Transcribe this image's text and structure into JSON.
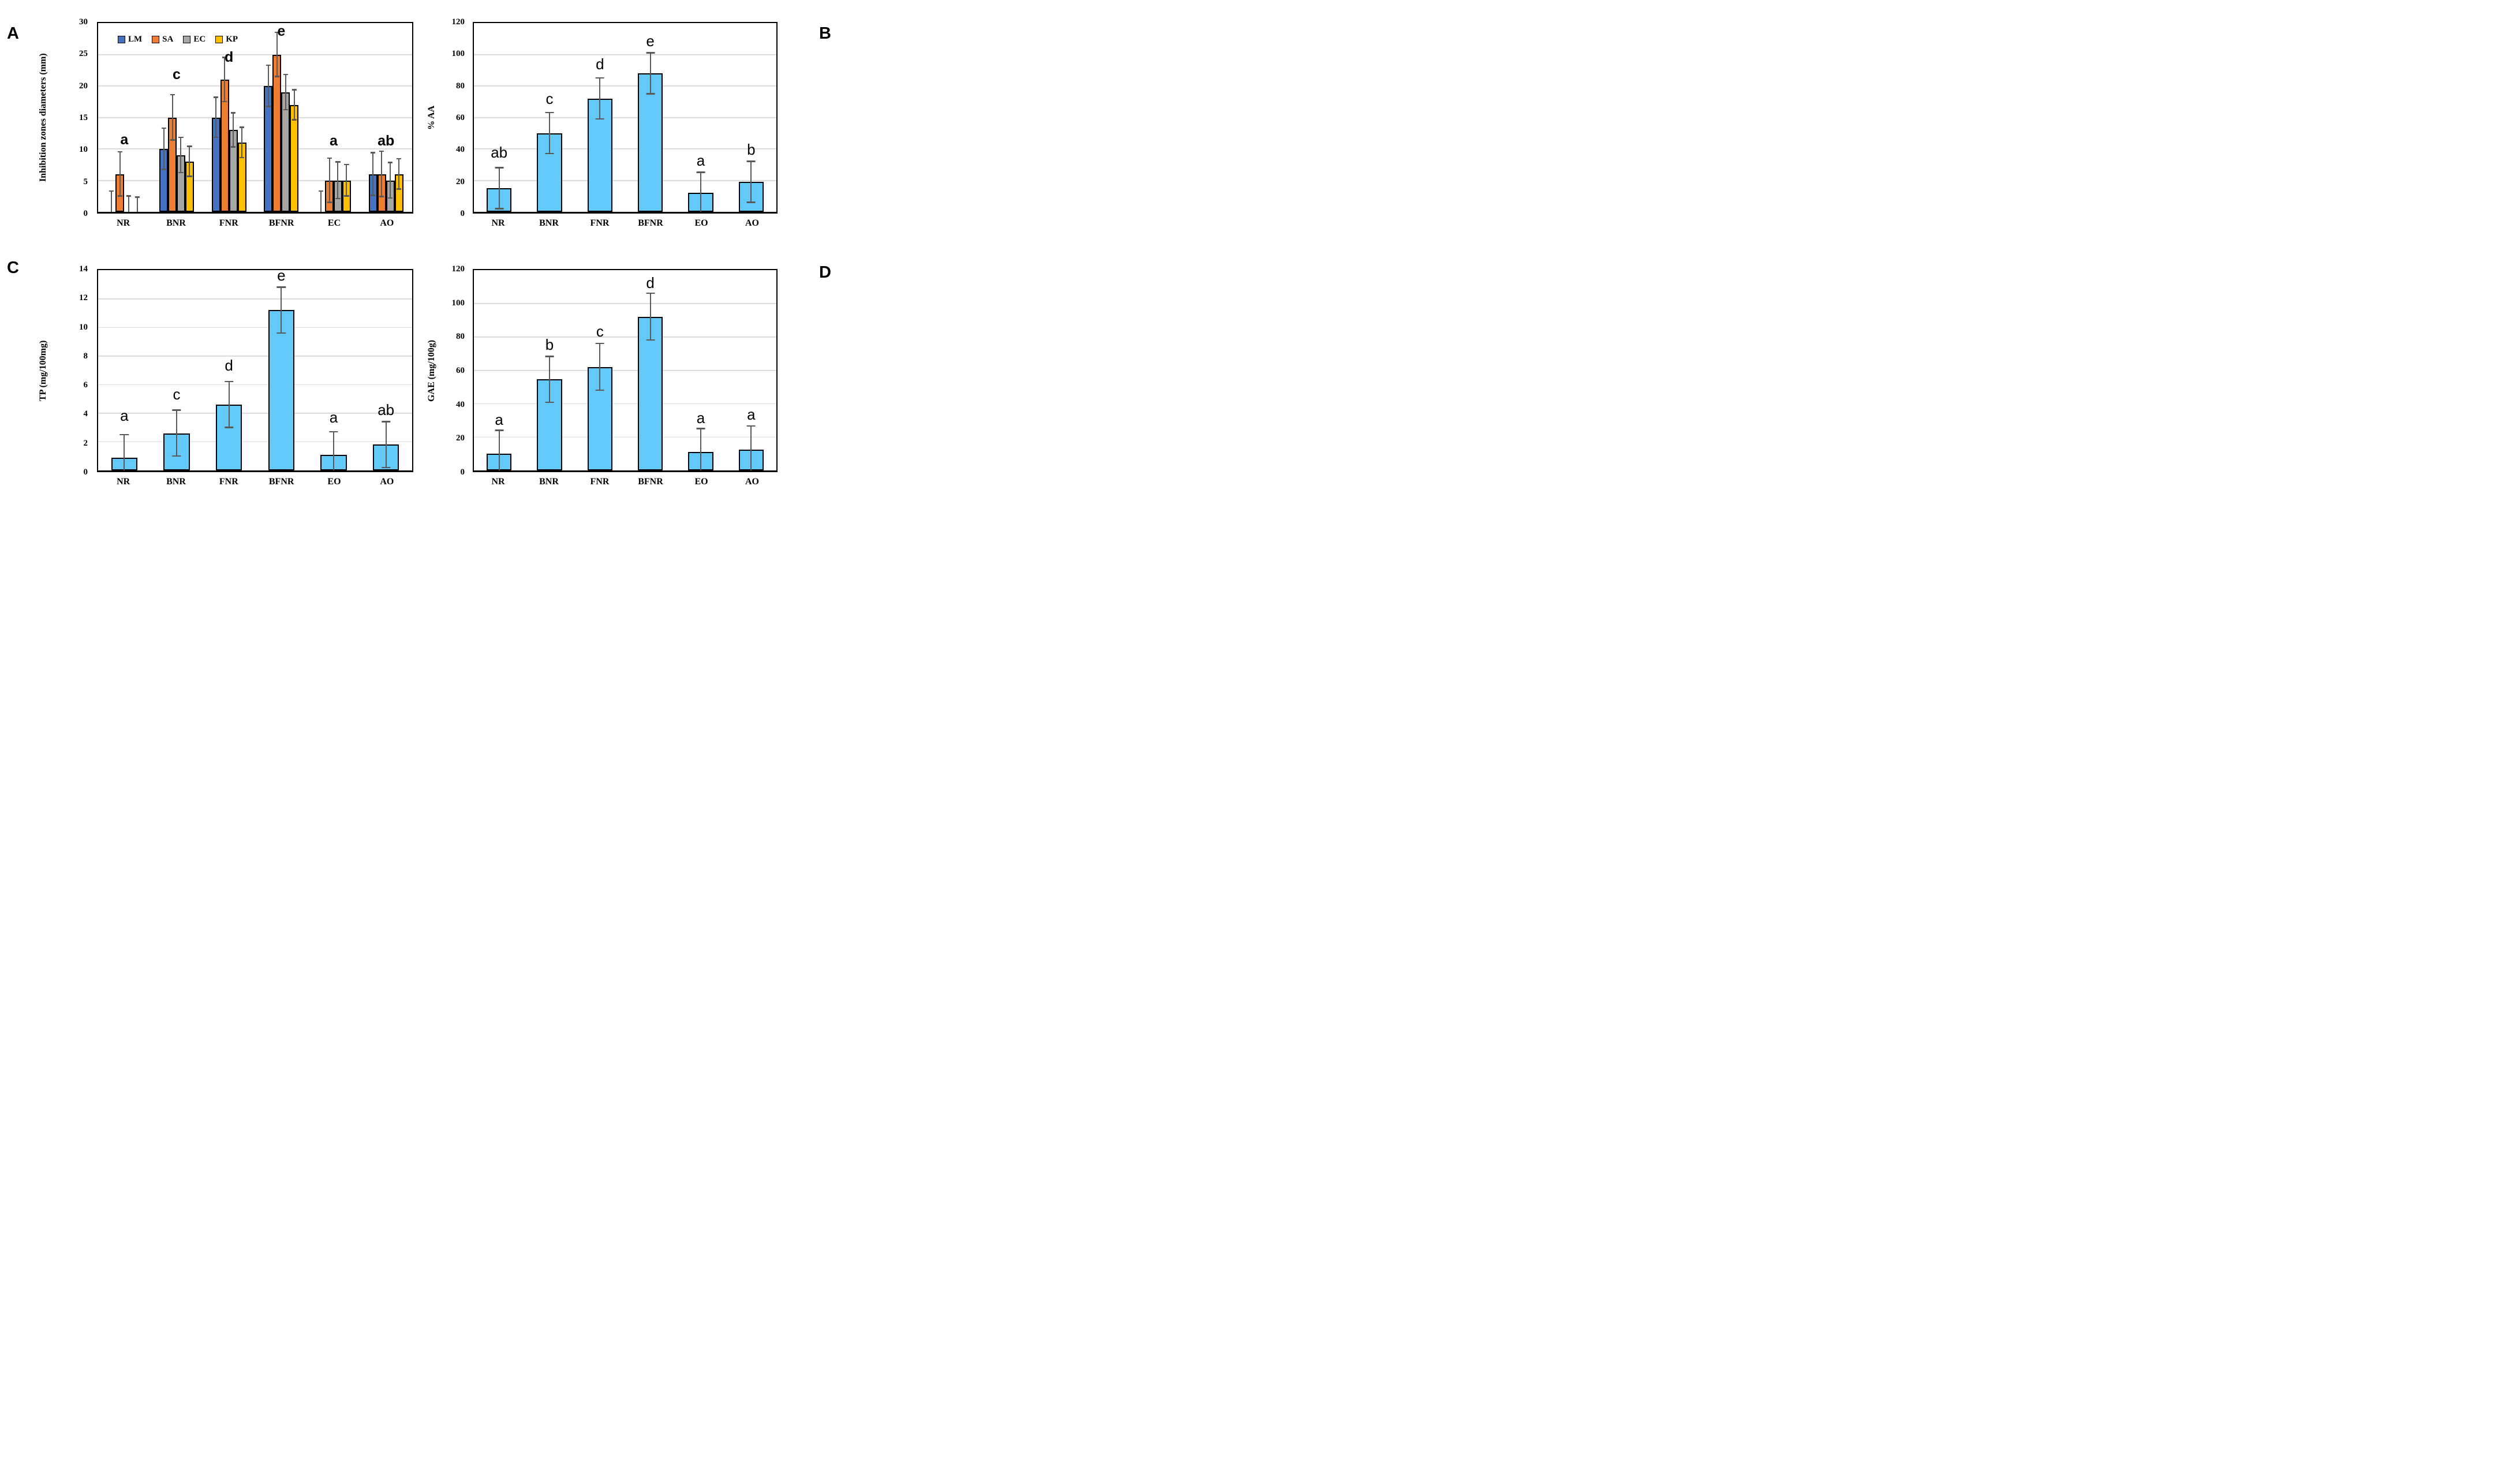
{
  "colors": {
    "blue": "#4472C4",
    "orange": "#ED7D31",
    "gray": "#A5A5A5",
    "yellow": "#FFC000",
    "bar_fill": "#63C9F8",
    "gridline": "#D9D9D9",
    "error_bar": "#595959",
    "outline": "#000000"
  },
  "chart_data": [
    {
      "corner_label": "A",
      "type": "grouped-bar",
      "ylabel": "Inhibition zones diameters (mm)",
      "ylim": [
        0,
        30
      ],
      "yticks": [
        0,
        5,
        10,
        15,
        20,
        25,
        30
      ],
      "grid": true,
      "legend_position": "top-left-inside",
      "categories": [
        "NR",
        "BNR",
        "FNR",
        "BFNR",
        "EC",
        "AO"
      ],
      "legend": [
        "LM",
        "SA",
        "EC",
        "KP"
      ],
      "series": [
        {
          "name": "LM",
          "color": "blue",
          "values": [
            0,
            10,
            15,
            20,
            0,
            6
          ],
          "errors": [
            3.3,
            3.3,
            3.2,
            3.3,
            3.3,
            3.4
          ]
        },
        {
          "name": "SA",
          "color": "orange",
          "values": [
            6,
            15,
            21,
            25,
            5,
            6
          ],
          "errors": [
            3.5,
            3.6,
            3.5,
            3.5,
            3.5,
            3.6
          ]
        },
        {
          "name": "EC",
          "color": "gray",
          "values": [
            0,
            9,
            13,
            19,
            5,
            5
          ],
          "errors": [
            2.5,
            2.8,
            2.7,
            2.8,
            2.9,
            2.8
          ]
        },
        {
          "name": "KP",
          "color": "yellow",
          "values": [
            0,
            8,
            11,
            17,
            5,
            6
          ],
          "errors": [
            2.3,
            2.4,
            2.4,
            2.4,
            2.5,
            2.4
          ]
        }
      ],
      "letters": [
        {
          "text": "a",
          "y": 10.3
        },
        {
          "text": "c",
          "y": 20.6
        },
        {
          "text": "d",
          "y": 23.4
        },
        {
          "text": "e",
          "y": 27.5
        },
        {
          "text": "a",
          "y": 10.1
        },
        {
          "text": "ab",
          "y": 10.1
        }
      ]
    },
    {
      "corner_label": "B",
      "type": "bar",
      "ylabel": "% AA",
      "ylim": [
        0,
        120
      ],
      "yticks": [
        0,
        20,
        40,
        60,
        80,
        100,
        120
      ],
      "grid": true,
      "categories": [
        "NR",
        "BNR",
        "FNR",
        "BFNR",
        "EO",
        "AO"
      ],
      "values": [
        15,
        50,
        72,
        88,
        12,
        19
      ],
      "errors": [
        13,
        13,
        13,
        13,
        13,
        13
      ],
      "letters": [
        {
          "text": "ab",
          "y": 33
        },
        {
          "text": "c",
          "y": 67
        },
        {
          "text": "d",
          "y": 89
        },
        {
          "text": "e",
          "y": 104
        },
        {
          "text": "a",
          "y": 28
        },
        {
          "text": "b",
          "y": 35
        }
      ]
    },
    {
      "corner_label": "C",
      "type": "bar",
      "ylabel": "TP (mg/100mg)",
      "ylim": [
        0,
        14
      ],
      "yticks": [
        0,
        2,
        4,
        6,
        8,
        10,
        12,
        14
      ],
      "grid": true,
      "categories": [
        "NR",
        "BNR",
        "FNR",
        "BFNR",
        "EO",
        "AO"
      ],
      "values": [
        0.9,
        2.6,
        4.6,
        11.2,
        1.1,
        1.8
      ],
      "errors": [
        1.6,
        1.6,
        1.6,
        1.6,
        1.6,
        1.6
      ],
      "letters": [
        {
          "text": "a",
          "y": 3.3
        },
        {
          "text": "c",
          "y": 4.8
        },
        {
          "text": "d",
          "y": 6.8
        },
        {
          "text": "e",
          "y": 13.1
        },
        {
          "text": "a",
          "y": 3.2
        },
        {
          "text": "ab",
          "y": 3.7
        }
      ]
    },
    {
      "corner_label": "D",
      "type": "bar",
      "ylabel": "GAE (mg/100g)",
      "ylim": [
        0,
        120
      ],
      "yticks": [
        0,
        20,
        40,
        60,
        80,
        100,
        120
      ],
      "grid": true,
      "categories": [
        "NR",
        "BNR",
        "FNR",
        "BFNR",
        "EO",
        "AO"
      ],
      "values": [
        10,
        54.5,
        62,
        92,
        11,
        12.5
      ],
      "errors": [
        14,
        13.8,
        14,
        14,
        14,
        14
      ],
      "letters": [
        {
          "text": "a",
          "y": 26
        },
        {
          "text": "b",
          "y": 71
        },
        {
          "text": "c",
          "y": 79
        },
        {
          "text": "d",
          "y": 108
        },
        {
          "text": "a",
          "y": 27
        },
        {
          "text": "a",
          "y": 29
        }
      ]
    }
  ]
}
